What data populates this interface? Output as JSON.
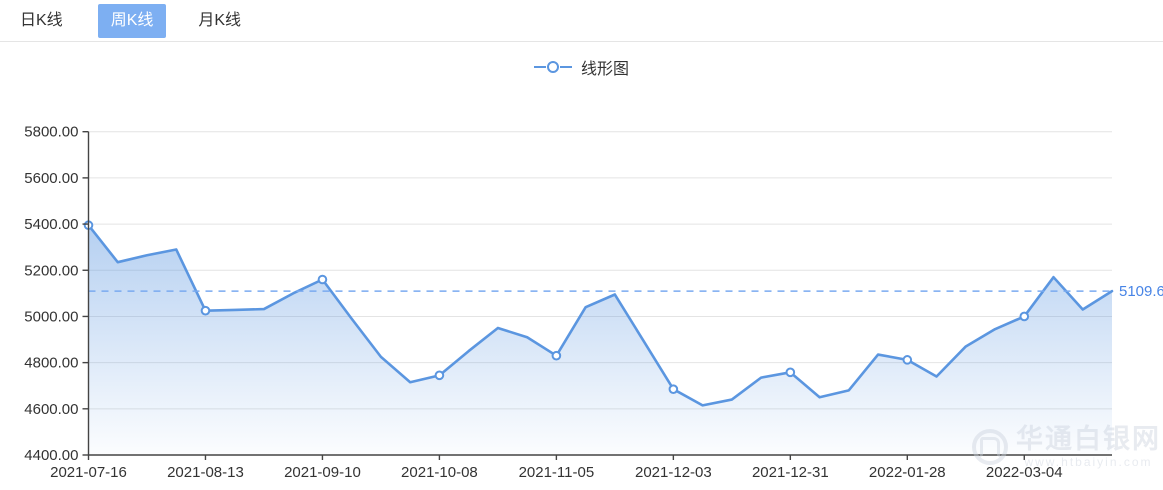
{
  "tabs": [
    {
      "label": "日K线",
      "active": false
    },
    {
      "label": "周K线",
      "active": true
    },
    {
      "label": "月K线",
      "active": false
    }
  ],
  "legend": {
    "label": "线形图"
  },
  "chart_data": {
    "type": "area",
    "series_name": "线形图",
    "ylim": [
      4400,
      5800
    ],
    "y_ticks": [
      5800,
      5600,
      5400,
      5200,
      5000,
      4800,
      4600,
      4400
    ],
    "y_tick_labels": [
      "5800.00",
      "5600.00",
      "5400.00",
      "5200.00",
      "5000.00",
      "4800.00",
      "4600.00",
      "4400.00"
    ],
    "x_tick_indices": [
      0,
      4,
      8,
      12,
      16,
      20,
      24,
      28,
      32
    ],
    "x_tick_labels": [
      "2021-07-16",
      "2021-08-13",
      "2021-09-10",
      "2021-10-08",
      "2021-11-05",
      "2021-12-03",
      "2021-12-31",
      "2022-01-28",
      "2022-03-04"
    ],
    "values": [
      5395,
      5235,
      5265,
      5290,
      5025,
      5028,
      5032,
      5100,
      5160,
      4990,
      4825,
      4715,
      4745,
      4850,
      4950,
      4910,
      4830,
      5040,
      5095,
      4890,
      4685,
      4615,
      4640,
      4735,
      4758,
      4650,
      4680,
      4835,
      4812,
      4740,
      4870,
      4945,
      5000,
      5170,
      5030,
      5109.6
    ],
    "marker_every": 4,
    "reference_line": {
      "value": 5109.6,
      "label": "5109.6"
    },
    "grid": true,
    "legend_position": "top-center"
  },
  "watermark": {
    "brand": "华通白银网",
    "url": "www.htbaiyin.com"
  },
  "colors": {
    "line": "#5b96e0",
    "area_top": "rgba(91,150,224,0.45)",
    "area_bottom": "rgba(91,150,224,0.02)",
    "dashed": "#7aaaf0",
    "ref_label": "#4784e6",
    "grid": "#e4e4e4",
    "axis": "#444444",
    "text": "#333333"
  }
}
